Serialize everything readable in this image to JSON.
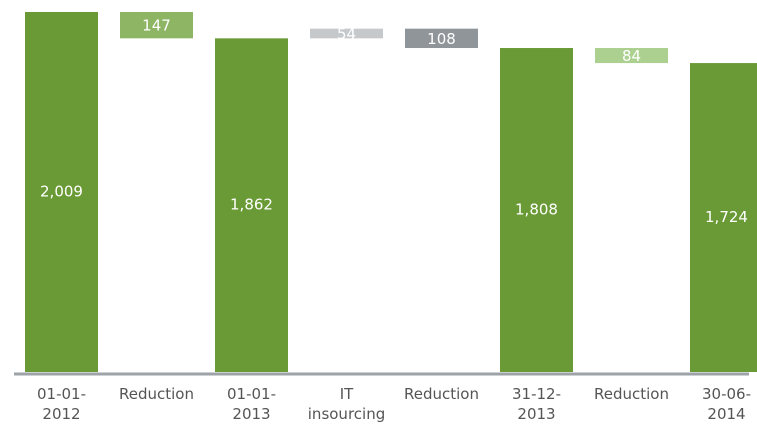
{
  "chart_data": {
    "type": "bar",
    "subtype": "waterfall",
    "title": "",
    "xlabel": "",
    "ylabel": "",
    "grid": false,
    "legend": "none",
    "categories": [
      [
        "01-01-",
        "2012"
      ],
      [
        "Reduction"
      ],
      [
        "01-01-",
        "2013"
      ],
      [
        "IT",
        "insourcing"
      ],
      [
        "Reduction"
      ],
      [
        "31-12-",
        "2013"
      ],
      [
        "Reduction"
      ],
      [
        "30-06-",
        "2014"
      ]
    ],
    "steps": [
      {
        "kind": "total",
        "value": 2009,
        "label": "2,009",
        "color": "#6a9a35"
      },
      {
        "kind": "decrease",
        "value": 147,
        "label": "147",
        "color": "#8db564"
      },
      {
        "kind": "total",
        "value": 1862,
        "label": "1,862",
        "color": "#6a9a35"
      },
      {
        "kind": "increase",
        "value": 54,
        "label": "54",
        "color": "#c6c9cb"
      },
      {
        "kind": "decrease",
        "value": 108,
        "label": "108",
        "color": "#8f9598"
      },
      {
        "kind": "total",
        "value": 1808,
        "label": "1,808",
        "color": "#6a9a35"
      },
      {
        "kind": "decrease",
        "value": 84,
        "label": "84",
        "color": "#acd08f"
      },
      {
        "kind": "total",
        "value": 1724,
        "label": "1,724",
        "color": "#6a9a35"
      }
    ],
    "ylim": [
      0,
      2009
    ],
    "colors": {
      "axis": "#9ea3a7",
      "tick_text": "#555555",
      "bar_text": "#ffffff"
    }
  }
}
